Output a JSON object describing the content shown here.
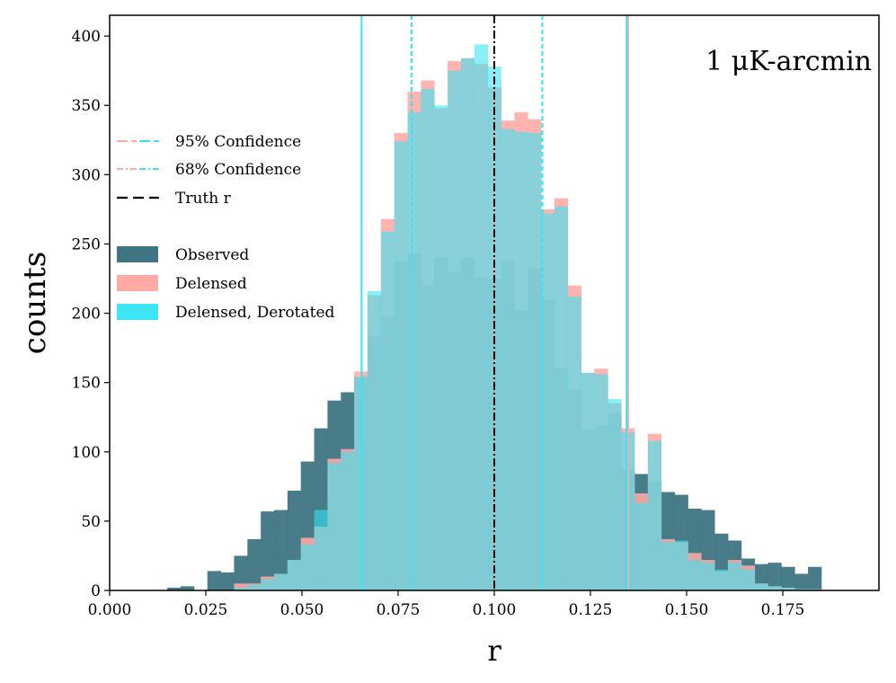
{
  "chart_data": {
    "type": "histogram",
    "xlabel": "r",
    "ylabel": "counts",
    "xlim": [
      0.0,
      0.2
    ],
    "ylim": [
      0,
      415
    ],
    "xticks": [
      0.0,
      0.025,
      0.05,
      0.075,
      0.1,
      0.125,
      0.15,
      0.175
    ],
    "xtick_labels": [
      "0.000",
      "0.025",
      "0.050",
      "0.075",
      "0.100",
      "0.125",
      "0.150",
      "0.175"
    ],
    "yticks": [
      0,
      50,
      100,
      150,
      200,
      250,
      300,
      350,
      400
    ],
    "ytick_labels": [
      "0",
      "50",
      "100",
      "150",
      "200",
      "250",
      "300",
      "350",
      "400"
    ],
    "annotation": "1 μK-arcmin",
    "bin_start": 0.015,
    "bin_width": 0.00347,
    "series": [
      {
        "name": "Observed",
        "color": "#3d7582",
        "values": [
          2,
          3,
          0,
          14,
          13,
          25,
          37,
          57,
          58,
          72,
          93,
          117,
          137,
          143,
          154,
          183,
          198,
          237,
          243,
          220,
          240,
          230,
          240,
          226,
          225,
          238,
          202,
          232,
          210,
          160,
          145,
          116,
          119,
          128,
          87,
          84,
          79,
          71,
          69,
          59,
          58,
          41,
          36,
          23,
          19,
          20,
          17,
          12,
          17
        ]
      },
      {
        "name": "Delensed",
        "color": "#ffaaa5",
        "values": [
          0,
          0,
          0,
          0,
          0,
          5,
          5,
          10,
          12,
          22,
          38,
          46,
          95,
          102,
          158,
          213,
          268,
          330,
          360,
          368,
          348,
          382,
          384,
          380,
          363,
          339,
          345,
          340,
          275,
          283,
          220,
          157,
          160,
          135,
          117,
          70,
          113,
          37,
          35,
          27,
          22,
          14,
          22,
          18,
          5,
          3,
          2,
          1,
          1
        ]
      },
      {
        "name": "Delensed, Derotated",
        "color": "#33e5f7",
        "values": [
          0,
          0,
          0,
          0,
          0,
          2,
          4,
          8,
          12,
          22,
          33,
          58,
          92,
          100,
          154,
          216,
          259,
          324,
          345,
          362,
          350,
          375,
          384,
          394,
          378,
          333,
          331,
          330,
          272,
          277,
          212,
          157,
          156,
          138,
          114,
          63,
          108,
          35,
          36,
          22,
          20,
          15,
          20,
          15,
          5,
          3,
          2,
          1,
          1
        ]
      }
    ],
    "vlines": [
      {
        "name": "Truth r",
        "x": 0.1,
        "color": "#000000",
        "style": "dashdot"
      },
      {
        "name": "95% Confidence (Delensed)",
        "x": 0.1348,
        "color": "#ffaaa5",
        "style": "solid"
      },
      {
        "name": "95% Confidence (Delensed, Derotated)",
        "x": 0.0655,
        "color": "#33e5f7",
        "style": "solid"
      },
      {
        "name": "95% Confidence (Delensed, Derotated)",
        "x": 0.1344,
        "color": "#33e5f7",
        "style": "solid"
      },
      {
        "name": "68% Confidence (Delensed)",
        "x": 0.0785,
        "color": "#ffaaa5",
        "style": "dashed"
      },
      {
        "name": "68% Confidence (Delensed)",
        "x": 0.1125,
        "color": "#ffaaa5",
        "style": "dashed"
      },
      {
        "name": "68% Confidence (Delensed, Derotated)",
        "x": 0.0785,
        "color": "#33e5f7",
        "style": "dashed"
      },
      {
        "name": "68% Confidence (Delensed, Derotated)",
        "x": 0.1125,
        "color": "#33e5f7",
        "style": "dashed"
      }
    ],
    "legend": [
      {
        "label": "95% Confidence",
        "kind": "line-pair",
        "colors": [
          "#ffaaa5",
          "#33e5f7"
        ],
        "style": "longdash"
      },
      {
        "label": "68% Confidence",
        "kind": "line-pair",
        "colors": [
          "#ffaaa5",
          "#33e5f7"
        ],
        "style": "dashdot"
      },
      {
        "label": "Truth r",
        "kind": "line",
        "colors": [
          "#000000"
        ],
        "style": "dash"
      },
      {
        "label": "Observed",
        "kind": "patch",
        "colors": [
          "#3d7582"
        ]
      },
      {
        "label": "Delensed",
        "kind": "patch",
        "colors": [
          "#ffaaa5"
        ]
      },
      {
        "label": "Delensed, Derotated",
        "kind": "patch",
        "colors": [
          "#33e5f7"
        ]
      }
    ]
  }
}
